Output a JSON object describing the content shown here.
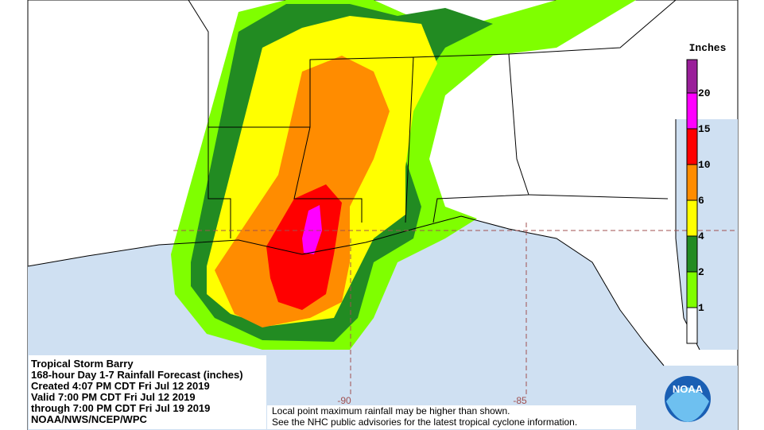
{
  "map": {
    "info": [
      "Tropical Storm Barry",
      "168-hour Day 1-7 Rainfall Forecast (inches)",
      "Created 4:07 PM CDT Fri Jul 12 2019",
      "Valid 7:00 PM CDT Fri Jul 12 2019",
      "through 7:00 PM CDT Fri Jul 19 2019",
      "NOAA/NWS/NCEP/WPC"
    ],
    "legend": {
      "title": "Inches",
      "labels": [
        1,
        2,
        4,
        6,
        10,
        15,
        20
      ],
      "colors": [
        "#ffffff",
        "#7fff00",
        "#228b22",
        "#ffff00",
        "#ff8c00",
        "#ff0000",
        "#ff00ff",
        "#9a1f9a"
      ]
    },
    "longitudes": [
      "-90",
      "-85"
    ],
    "notes": [
      "Local point maximum rainfall may be higher than shown.",
      "See the NHC public advisories for the latest tropical cyclone information."
    ],
    "logo": "NOAA"
  }
}
